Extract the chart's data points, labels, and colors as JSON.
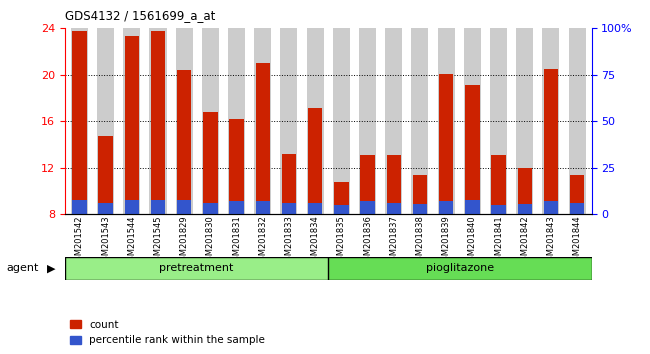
{
  "title": "GDS4132 / 1561699_a_at",
  "samples": [
    "GSM201542",
    "GSM201543",
    "GSM201544",
    "GSM201545",
    "GSM201829",
    "GSM201830",
    "GSM201831",
    "GSM201832",
    "GSM201833",
    "GSM201834",
    "GSM201835",
    "GSM201836",
    "GSM201837",
    "GSM201838",
    "GSM201839",
    "GSM201840",
    "GSM201841",
    "GSM201842",
    "GSM201843",
    "GSM201844"
  ],
  "count_values": [
    23.8,
    14.7,
    23.3,
    23.8,
    20.4,
    16.8,
    16.2,
    21.0,
    13.2,
    17.1,
    10.8,
    13.1,
    13.1,
    11.4,
    20.1,
    19.1,
    13.1,
    12.0,
    20.5,
    11.4
  ],
  "percentile_values": [
    9.2,
    9.0,
    9.2,
    9.2,
    9.2,
    9.0,
    9.1,
    9.1,
    9.0,
    9.0,
    8.8,
    9.1,
    9.0,
    8.9,
    9.1,
    9.2,
    8.8,
    8.9,
    9.1,
    9.0
  ],
  "bar_base": 8.0,
  "count_color": "#CC2200",
  "percentile_color": "#3355CC",
  "ylim_left": [
    8,
    24
  ],
  "ylim_right": [
    0,
    100
  ],
  "yticks_left": [
    8,
    12,
    16,
    20,
    24
  ],
  "yticks_right": [
    0,
    25,
    50,
    75,
    100
  ],
  "ytick_labels_right": [
    "0",
    "25",
    "50",
    "75",
    "100%"
  ],
  "pretreatment_samples": 10,
  "pioglitazone_samples": 10,
  "group_label_pretreatment": "pretreatment",
  "group_label_pioglitazone": "pioglitazone",
  "agent_label": "agent",
  "legend_count": "count",
  "legend_percentile": "percentile rank within the sample",
  "pretreatment_color": "#99EE88",
  "pioglitazone_color": "#66DD55",
  "col_bg_color": "#CCCCCC",
  "bar_width": 0.55
}
